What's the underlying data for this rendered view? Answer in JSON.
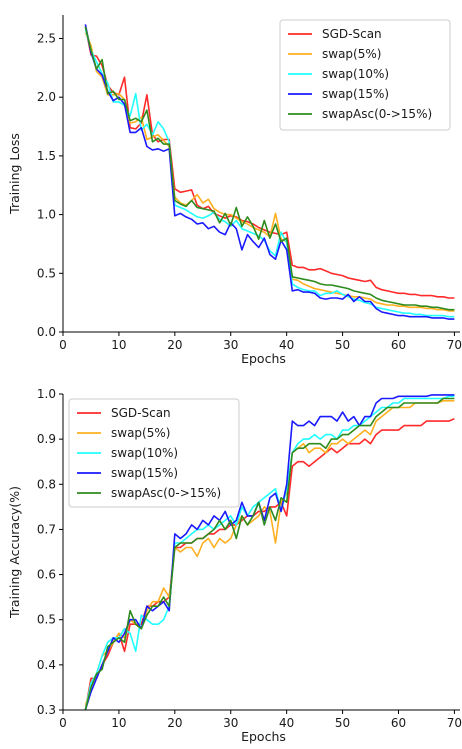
{
  "colors": {
    "SGD-Scan": "#ff2a2a",
    "swap(5%)": "#ffb020",
    "swap(10%)": "#22ffff",
    "swap(15%)": "#1a1aff",
    "swapAsc(0->15%)": "#2e8b1e"
  },
  "chart_data": [
    {
      "type": "line",
      "xlabel": "Epochs",
      "ylabel": "Training Loss",
      "xlim": [
        0,
        71
      ],
      "ylim": [
        0,
        2.7
      ],
      "xticks": [
        0,
        10,
        20,
        30,
        40,
        50,
        60,
        70
      ],
      "yticks": [
        0.0,
        0.5,
        1.0,
        1.5,
        2.0,
        2.5
      ],
      "ytick_labels": [
        "0.0",
        "0.5",
        "1.0",
        "1.5",
        "2.0",
        "2.5"
      ],
      "grid": false,
      "legend_position": "top-right",
      "x": [
        4,
        5,
        6,
        7,
        8,
        9,
        10,
        11,
        12,
        13,
        14,
        15,
        16,
        17,
        18,
        19,
        20,
        21,
        22,
        23,
        24,
        25,
        26,
        27,
        28,
        29,
        30,
        31,
        32,
        33,
        34,
        35,
        36,
        37,
        38,
        39,
        40,
        41,
        42,
        43,
        44,
        45,
        46,
        47,
        48,
        49,
        50,
        51,
        52,
        53,
        54,
        55,
        56,
        57,
        58,
        59,
        60,
        61,
        62,
        63,
        64,
        65,
        66,
        67,
        68,
        69,
        70
      ],
      "series": [
        {
          "name": "SGD-Scan",
          "values": [
            2.6,
            2.36,
            2.35,
            2.27,
            2.1,
            2.04,
            2.02,
            2.17,
            1.74,
            1.73,
            1.78,
            2.02,
            1.68,
            1.62,
            1.64,
            1.64,
            1.22,
            1.19,
            1.2,
            1.21,
            1.08,
            1.05,
            1.07,
            1.01,
            0.99,
            0.97,
            0.99,
            0.98,
            0.95,
            0.94,
            0.92,
            0.89,
            0.87,
            0.85,
            0.84,
            0.83,
            0.85,
            0.57,
            0.55,
            0.55,
            0.53,
            0.53,
            0.54,
            0.52,
            0.5,
            0.49,
            0.48,
            0.46,
            0.45,
            0.44,
            0.43,
            0.44,
            0.38,
            0.36,
            0.35,
            0.34,
            0.33,
            0.33,
            0.32,
            0.32,
            0.31,
            0.31,
            0.31,
            0.3,
            0.3,
            0.29,
            0.29
          ]
        },
        {
          "name": "swap(5%)",
          "values": [
            2.55,
            2.44,
            2.22,
            2.17,
            2.02,
            2.02,
            2.03,
            1.98,
            1.78,
            1.79,
            1.83,
            1.64,
            1.66,
            1.68,
            1.63,
            1.58,
            1.15,
            1.1,
            1.08,
            1.12,
            1.17,
            1.1,
            1.13,
            1.05,
            1.02,
            1.0,
            1.0,
            0.97,
            0.94,
            0.92,
            0.89,
            0.87,
            0.85,
            0.81,
            1.01,
            0.79,
            0.77,
            0.45,
            0.44,
            0.41,
            0.39,
            0.37,
            0.36,
            0.35,
            0.34,
            0.33,
            0.32,
            0.31,
            0.3,
            0.3,
            0.29,
            0.28,
            0.25,
            0.24,
            0.23,
            0.23,
            0.22,
            0.22,
            0.21,
            0.21,
            0.21,
            0.2,
            0.2,
            0.19,
            0.19,
            0.18,
            0.18
          ]
        },
        {
          "name": "swap(10%)",
          "values": [
            2.58,
            2.4,
            2.3,
            2.2,
            2.12,
            1.96,
            1.96,
            1.93,
            1.84,
            2.03,
            1.72,
            1.77,
            1.68,
            1.79,
            1.73,
            1.62,
            1.08,
            1.06,
            1.04,
            1.01,
            0.98,
            0.97,
            0.99,
            1.02,
            0.96,
            0.94,
            0.9,
            0.95,
            0.88,
            0.86,
            0.84,
            0.82,
            0.78,
            0.69,
            0.65,
            0.85,
            0.76,
            0.41,
            0.38,
            0.36,
            0.35,
            0.35,
            0.31,
            0.33,
            0.33,
            0.35,
            0.32,
            0.3,
            0.28,
            0.27,
            0.25,
            0.24,
            0.21,
            0.2,
            0.19,
            0.18,
            0.17,
            0.16,
            0.16,
            0.15,
            0.15,
            0.14,
            0.14,
            0.14,
            0.14,
            0.13,
            0.13
          ]
        },
        {
          "name": "swap(15%)",
          "values": [
            2.62,
            2.38,
            2.24,
            2.19,
            2.05,
            1.97,
            2.0,
            1.94,
            1.7,
            1.7,
            1.74,
            1.58,
            1.55,
            1.56,
            1.54,
            1.56,
            0.99,
            1.01,
            0.98,
            0.96,
            0.92,
            0.93,
            0.88,
            0.9,
            0.85,
            0.83,
            0.93,
            0.88,
            0.7,
            0.83,
            0.77,
            0.72,
            0.8,
            0.66,
            0.62,
            0.78,
            0.7,
            0.35,
            0.36,
            0.34,
            0.34,
            0.33,
            0.29,
            0.28,
            0.29,
            0.29,
            0.28,
            0.32,
            0.26,
            0.3,
            0.26,
            0.26,
            0.2,
            0.17,
            0.16,
            0.15,
            0.14,
            0.14,
            0.13,
            0.13,
            0.13,
            0.13,
            0.12,
            0.12,
            0.12,
            0.11,
            0.11
          ]
        },
        {
          "name": "swapAsc(0->15%)",
          "values": [
            2.6,
            2.4,
            2.24,
            2.32,
            2.03,
            2.05,
            1.98,
            1.98,
            1.8,
            1.82,
            1.79,
            1.89,
            1.62,
            1.65,
            1.6,
            1.6,
            1.12,
            1.09,
            1.07,
            1.12,
            1.06,
            1.05,
            1.04,
            1.03,
            0.93,
            1.01,
            0.91,
            1.06,
            0.9,
            0.98,
            0.9,
            0.79,
            0.95,
            0.8,
            0.92,
            0.77,
            0.8,
            0.47,
            0.46,
            0.45,
            0.44,
            0.43,
            0.41,
            0.4,
            0.4,
            0.39,
            0.38,
            0.37,
            0.35,
            0.34,
            0.33,
            0.32,
            0.29,
            0.27,
            0.26,
            0.25,
            0.24,
            0.23,
            0.23,
            0.23,
            0.22,
            0.22,
            0.21,
            0.21,
            0.2,
            0.19,
            0.19
          ]
        }
      ]
    },
    {
      "type": "line",
      "xlabel": "Epochs",
      "ylabel": "Training Accuracy(%)",
      "xlim": [
        0,
        71
      ],
      "ylim": [
        0.3,
        1.0
      ],
      "xticks": [
        0,
        10,
        20,
        30,
        40,
        50,
        60,
        70
      ],
      "yticks": [
        0.3,
        0.4,
        0.5,
        0.6,
        0.7,
        0.8,
        0.9,
        1.0
      ],
      "ytick_labels": [
        "0.3",
        "0.4",
        "0.5",
        "0.6",
        "0.7",
        "0.8",
        "0.9",
        "1.0"
      ],
      "grid": false,
      "legend_position": "top-left",
      "x": [
        4,
        5,
        6,
        7,
        8,
        9,
        10,
        11,
        12,
        13,
        14,
        15,
        16,
        17,
        18,
        19,
        20,
        21,
        22,
        23,
        24,
        25,
        26,
        27,
        28,
        29,
        30,
        31,
        32,
        33,
        34,
        35,
        36,
        37,
        38,
        39,
        40,
        41,
        42,
        43,
        44,
        45,
        46,
        47,
        48,
        49,
        50,
        51,
        52,
        53,
        54,
        55,
        56,
        57,
        58,
        59,
        60,
        61,
        62,
        63,
        64,
        65,
        66,
        67,
        68,
        69,
        70
      ],
      "series": [
        {
          "name": "SGD-Scan",
          "values": [
            0.3,
            0.37,
            0.37,
            0.4,
            0.42,
            0.45,
            0.47,
            0.43,
            0.49,
            0.49,
            0.49,
            0.53,
            0.53,
            0.54,
            0.54,
            0.55,
            0.66,
            0.66,
            0.67,
            0.67,
            0.68,
            0.68,
            0.69,
            0.69,
            0.7,
            0.7,
            0.71,
            0.71,
            0.72,
            0.73,
            0.73,
            0.74,
            0.74,
            0.75,
            0.75,
            0.76,
            0.73,
            0.84,
            0.85,
            0.85,
            0.84,
            0.85,
            0.86,
            0.87,
            0.88,
            0.87,
            0.88,
            0.89,
            0.89,
            0.89,
            0.9,
            0.89,
            0.91,
            0.92,
            0.92,
            0.92,
            0.92,
            0.93,
            0.93,
            0.93,
            0.93,
            0.94,
            0.94,
            0.94,
            0.94,
            0.94,
            0.945
          ]
        },
        {
          "name": "swap(5%)",
          "values": [
            0.31,
            0.35,
            0.38,
            0.42,
            0.43,
            0.45,
            0.47,
            0.46,
            0.5,
            0.49,
            0.48,
            0.52,
            0.54,
            0.54,
            0.57,
            0.55,
            0.66,
            0.65,
            0.66,
            0.66,
            0.64,
            0.67,
            0.68,
            0.66,
            0.68,
            0.67,
            0.68,
            0.71,
            0.73,
            0.71,
            0.72,
            0.73,
            0.75,
            0.74,
            0.67,
            0.76,
            0.78,
            0.87,
            0.88,
            0.89,
            0.87,
            0.88,
            0.88,
            0.87,
            0.89,
            0.89,
            0.9,
            0.89,
            0.9,
            0.91,
            0.92,
            0.91,
            0.94,
            0.95,
            0.96,
            0.97,
            0.97,
            0.97,
            0.97,
            0.98,
            0.98,
            0.98,
            0.98,
            0.98,
            0.985,
            0.985,
            0.985
          ]
        },
        {
          "name": "swap(10%)",
          "values": [
            0.3,
            0.36,
            0.38,
            0.42,
            0.45,
            0.46,
            0.46,
            0.48,
            0.47,
            0.43,
            0.51,
            0.5,
            0.49,
            0.49,
            0.5,
            0.53,
            0.67,
            0.67,
            0.68,
            0.69,
            0.7,
            0.7,
            0.71,
            0.7,
            0.71,
            0.72,
            0.73,
            0.71,
            0.75,
            0.73,
            0.75,
            0.76,
            0.77,
            0.78,
            0.79,
            0.74,
            0.79,
            0.87,
            0.89,
            0.9,
            0.9,
            0.91,
            0.9,
            0.91,
            0.91,
            0.9,
            0.92,
            0.92,
            0.93,
            0.93,
            0.94,
            0.95,
            0.96,
            0.97,
            0.97,
            0.98,
            0.98,
            0.99,
            0.99,
            0.99,
            0.99,
            0.99,
            0.99,
            0.99,
            0.99,
            0.995,
            0.995
          ]
        },
        {
          "name": "swap(15%)",
          "values": [
            0.3,
            0.34,
            0.37,
            0.4,
            0.43,
            0.46,
            0.45,
            0.47,
            0.5,
            0.5,
            0.48,
            0.53,
            0.52,
            0.53,
            0.54,
            0.52,
            0.69,
            0.68,
            0.69,
            0.71,
            0.7,
            0.72,
            0.71,
            0.73,
            0.72,
            0.74,
            0.71,
            0.72,
            0.76,
            0.73,
            0.73,
            0.76,
            0.72,
            0.77,
            0.78,
            0.74,
            0.8,
            0.94,
            0.93,
            0.93,
            0.94,
            0.93,
            0.95,
            0.95,
            0.95,
            0.94,
            0.96,
            0.94,
            0.95,
            0.93,
            0.95,
            0.95,
            0.98,
            0.99,
            0.99,
            0.99,
            0.995,
            0.995,
            0.995,
            0.995,
            0.995,
            0.995,
            0.998,
            0.998,
            0.998,
            0.998,
            0.998
          ]
        },
        {
          "name": "swapAsc(0->15%)",
          "values": [
            0.3,
            0.35,
            0.38,
            0.39,
            0.44,
            0.45,
            0.46,
            0.45,
            0.52,
            0.49,
            0.48,
            0.51,
            0.53,
            0.53,
            0.55,
            0.53,
            0.66,
            0.67,
            0.67,
            0.67,
            0.68,
            0.68,
            0.69,
            0.7,
            0.72,
            0.7,
            0.72,
            0.68,
            0.73,
            0.71,
            0.73,
            0.76,
            0.71,
            0.75,
            0.72,
            0.77,
            0.76,
            0.87,
            0.88,
            0.88,
            0.89,
            0.89,
            0.89,
            0.88,
            0.9,
            0.9,
            0.91,
            0.91,
            0.92,
            0.93,
            0.93,
            0.93,
            0.95,
            0.96,
            0.97,
            0.97,
            0.97,
            0.98,
            0.98,
            0.98,
            0.98,
            0.98,
            0.98,
            0.98,
            0.99,
            0.99,
            0.99
          ]
        }
      ]
    }
  ]
}
